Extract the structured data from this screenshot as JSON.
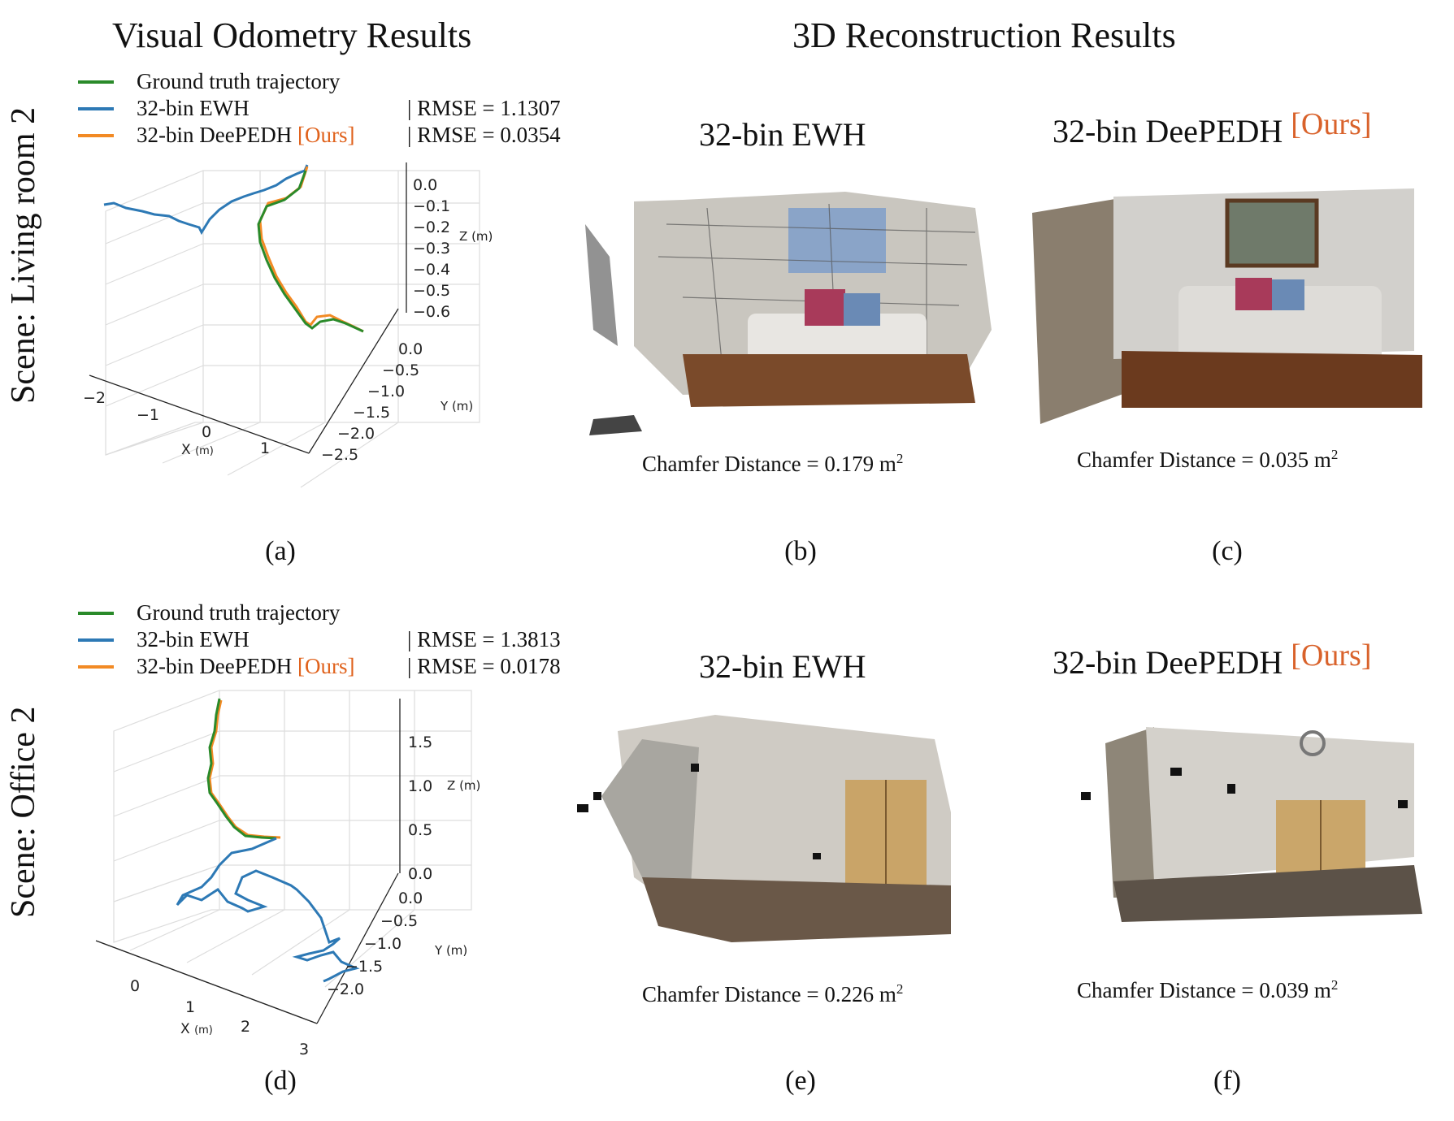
{
  "headers": {
    "left": "Visual Odometry Results",
    "right": "3D Reconstruction Results"
  },
  "scenes": [
    "Scene: Living room 2",
    "Scene: Office 2"
  ],
  "captions": [
    "(a)",
    "(b)",
    "(c)",
    "(d)",
    "(e)",
    "(f)"
  ],
  "panels": [
    {
      "title": "32-bin EWH",
      "tag": "",
      "chamfer_label": "Chamfer Distance = ",
      "chamfer_value": "0.179",
      "chamfer_unit": "m",
      "chamfer_exp": "2"
    },
    {
      "title": "32-bin DeePEDH",
      "tag": "[Ours]",
      "chamfer_label": "Chamfer Distance = ",
      "chamfer_value": "0.035",
      "chamfer_unit": "m",
      "chamfer_exp": "2"
    },
    {
      "title": "32-bin EWH",
      "tag": "",
      "chamfer_label": "Chamfer Distance = ",
      "chamfer_value": "0.226",
      "chamfer_unit": "m",
      "chamfer_exp": "2"
    },
    {
      "title": "32-bin DeePEDH",
      "tag": "[Ours]",
      "chamfer_label": "Chamfer Distance = ",
      "chamfer_value": "0.039",
      "chamfer_unit": "m",
      "chamfer_exp": "2"
    }
  ],
  "colors": {
    "gt": "#2a8a2a",
    "ewh": "#2d79b5",
    "ours": "#f28a24",
    "ours_text": "#e0621c"
  },
  "chart_data": [
    {
      "type": "line",
      "subtype": "3d-trajectory",
      "scene": "Living room 2",
      "legend": [
        {
          "name": "Ground truth trajectory",
          "tag": "",
          "rmse": ""
        },
        {
          "name": "32-bin EWH",
          "tag": "",
          "rmse": "| RMSE = 1.1307"
        },
        {
          "name": "32-bin DeePEDH",
          "tag": "[Ours]",
          "rmse": "| RMSE = 0.0354"
        }
      ],
      "xlabel": "X",
      "ylabel": "Y",
      "zlabel": "Z",
      "unit": "(m)",
      "x_ticks": [
        "−2",
        "−1",
        "0",
        "1"
      ],
      "y_ticks": [
        "0.0",
        "−0.5",
        "−1.0",
        "−1.5",
        "−2.0",
        "−2.5"
      ],
      "z_ticks": [
        "0.0",
        "−0.1",
        "−0.2",
        "−0.3",
        "−0.4",
        "−0.5",
        "−0.6"
      ],
      "rmse": {
        "32-bin EWH": 1.1307,
        "32-bin DeePEDH": 0.0354
      }
    },
    {
      "type": "line",
      "subtype": "3d-trajectory",
      "scene": "Office 2",
      "legend": [
        {
          "name": "Ground truth trajectory",
          "tag": "",
          "rmse": ""
        },
        {
          "name": "32-bin EWH",
          "tag": "",
          "rmse": "| RMSE = 1.3813"
        },
        {
          "name": "32-bin DeePEDH",
          "tag": "[Ours]",
          "rmse": "| RMSE = 0.0178"
        }
      ],
      "xlabel": "X",
      "ylabel": "Y",
      "zlabel": "Z",
      "unit": "(m)",
      "x_ticks": [
        "0",
        "1",
        "2",
        "3"
      ],
      "y_ticks": [
        "0.0",
        "−0.5",
        "−1.0",
        "−1.5",
        "−2.0"
      ],
      "z_ticks": [
        "1.5",
        "1.0",
        "0.5",
        "0.0"
      ],
      "rmse": {
        "32-bin EWH": 1.3813,
        "32-bin DeePEDH": 0.0178
      }
    }
  ]
}
